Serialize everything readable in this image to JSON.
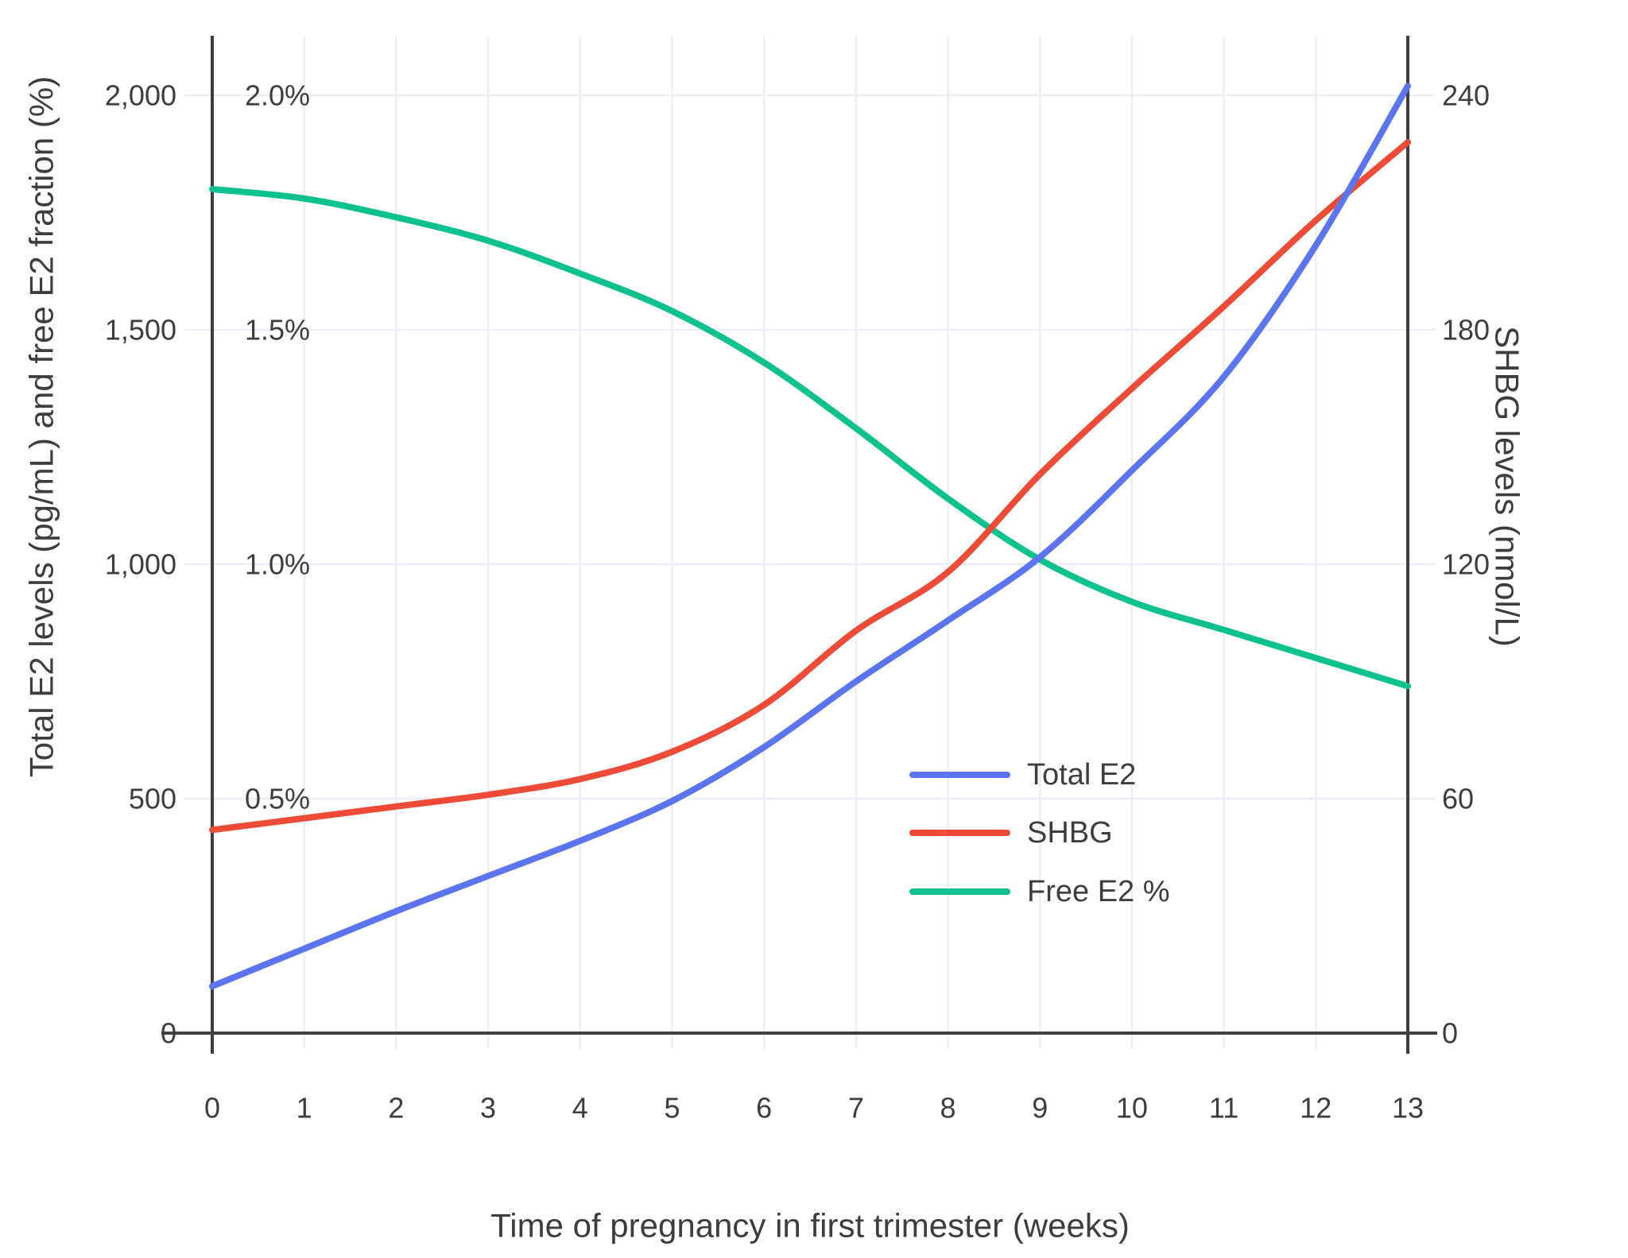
{
  "chart_data": {
    "type": "line",
    "title": "",
    "xlabel": "Time of pregnancy in first trimester (weeks)",
    "ylabel_left": "Total E2 levels (pg/mL) and free E2 fraction (%)",
    "ylabel_right": "SHBG levels (nmol/L)",
    "x_weeks": [
      0,
      1,
      2,
      3,
      4,
      5,
      6,
      7,
      8,
      9,
      10,
      11,
      12,
      13
    ],
    "x_tick_labels": [
      "0",
      "1",
      "2",
      "3",
      "4",
      "5",
      "6",
      "7",
      "8",
      "9",
      "10",
      "11",
      "12",
      "13"
    ],
    "left_ticks": [
      {
        "value": 0,
        "label": "0"
      },
      {
        "value": 500,
        "label": "500"
      },
      {
        "value": 1000,
        "label": "1,000"
      },
      {
        "value": 1500,
        "label": "1,500"
      },
      {
        "value": 2000,
        "label": "2,000"
      }
    ],
    "left_pct_labels": [
      {
        "value": 500,
        "label": "0.5%"
      },
      {
        "value": 1000,
        "label": "1.0%"
      },
      {
        "value": 1500,
        "label": "1.5%"
      },
      {
        "value": 2000,
        "label": "2.0%"
      }
    ],
    "right_ticks": [
      {
        "value": 0,
        "label": "0"
      },
      {
        "value": 60,
        "label": "60"
      },
      {
        "value": 120,
        "label": "120"
      },
      {
        "value": 180,
        "label": "180"
      },
      {
        "value": 240,
        "label": "240"
      }
    ],
    "left_axis_range_pg_ml": [
      0,
      2130
    ],
    "right_axis_range_nmol_l": [
      0,
      255
    ],
    "grid": true,
    "legend_position": "inside-right",
    "series": [
      {
        "name": "Total E2",
        "axis": "left",
        "unit": "pg/mL",
        "color": "#5b74f0",
        "values": [
          100,
          180,
          260,
          335,
          410,
          495,
          610,
          750,
          880,
          1015,
          1200,
          1400,
          1680,
          2020
        ]
      },
      {
        "name": "SHBG",
        "axis": "right",
        "unit": "nmol/L",
        "color": "#ee4b37",
        "values": [
          52,
          55,
          58,
          61,
          65,
          72,
          84,
          103,
          118,
          143,
          165,
          186,
          208,
          228
        ]
      },
      {
        "name": "Free E2 %",
        "axis": "left-percent",
        "unit": "%",
        "color": "#0dc28f",
        "values": [
          1.8,
          1.78,
          1.74,
          1.69,
          1.62,
          1.54,
          1.43,
          1.29,
          1.14,
          1.01,
          0.92,
          0.86,
          0.8,
          0.74
        ]
      }
    ],
    "colors": {
      "grid": "#e9eef7",
      "axis": "#3f3f3f",
      "text": "#3d3d3d",
      "background": "#ffffff"
    }
  }
}
